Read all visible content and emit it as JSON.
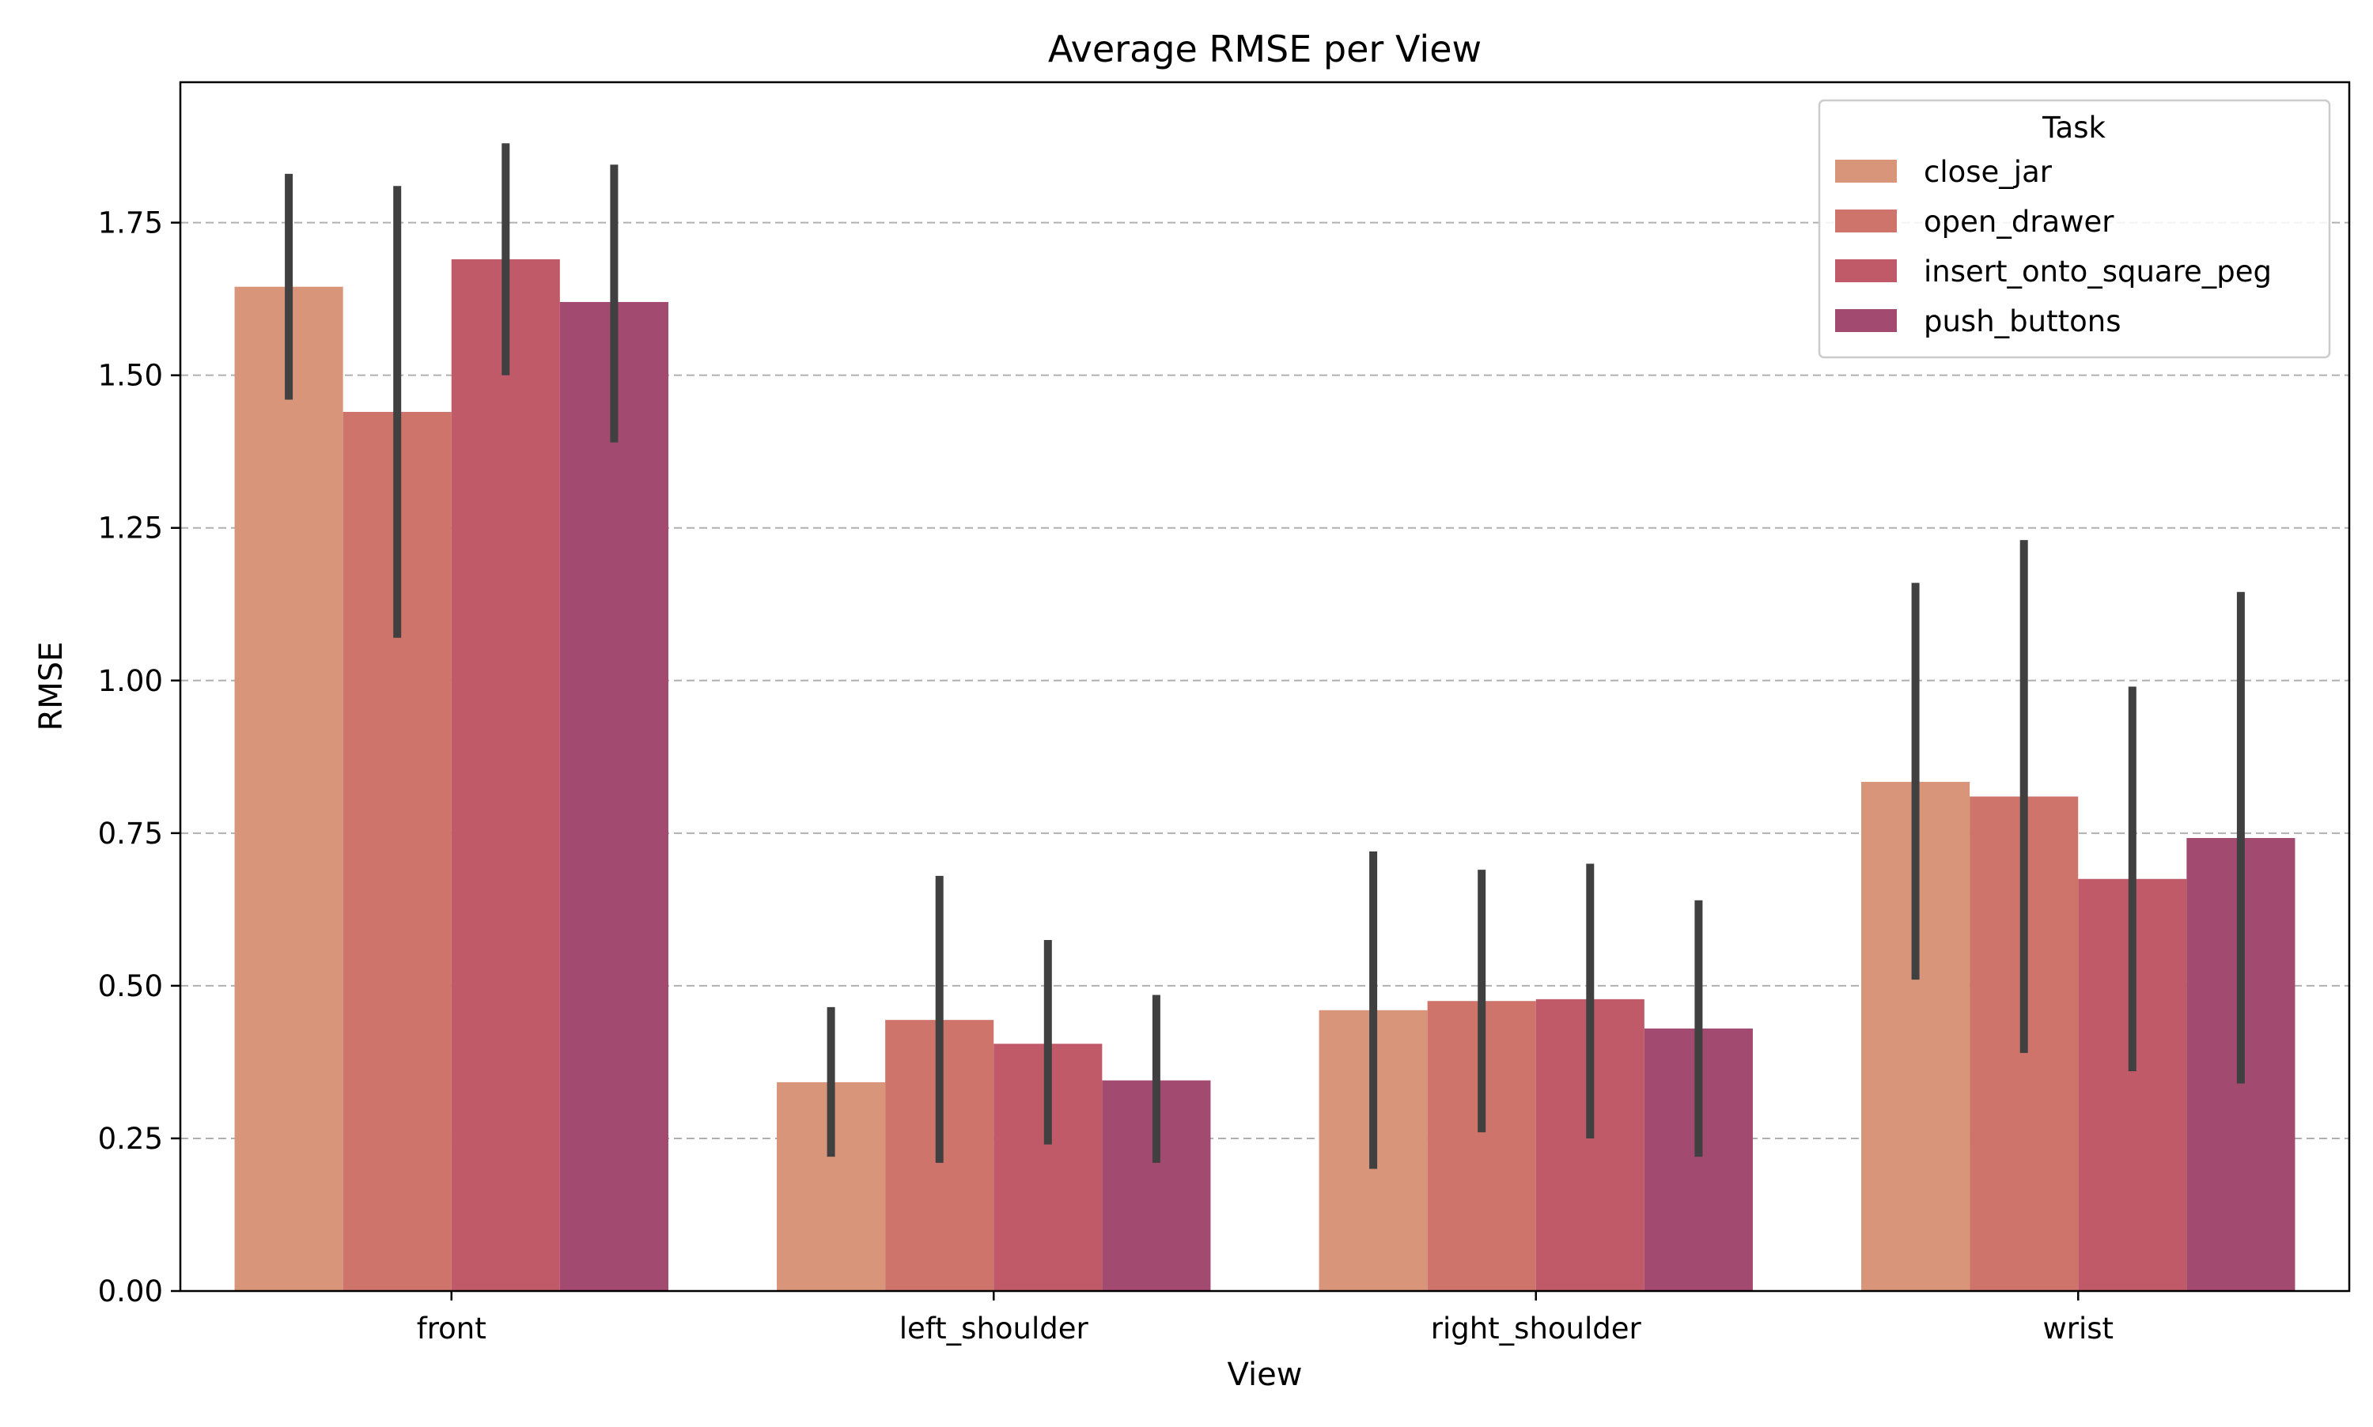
{
  "chart_data": {
    "type": "bar",
    "title": "Average RMSE per View",
    "xlabel": "View",
    "ylabel": "RMSE",
    "categories": [
      "front",
      "left_shoulder",
      "right_shoulder",
      "wrist"
    ],
    "ylim": [
      0,
      1.98
    ],
    "yticks": [
      "0.00",
      "0.25",
      "0.50",
      "0.75",
      "1.00",
      "1.25",
      "1.50",
      "1.75"
    ],
    "grid": "y-dashed",
    "legend": {
      "title": "Task",
      "placement": "top-right"
    },
    "series": [
      {
        "name": "close_jar",
        "color": "#d8957a",
        "values": [
          1.645,
          0.342,
          0.46,
          0.834
        ],
        "ci_low": [
          1.46,
          0.22,
          0.2,
          0.51
        ],
        "ci_high": [
          1.83,
          0.465,
          0.72,
          1.16
        ]
      },
      {
        "name": "open_drawer",
        "color": "#cf746b",
        "values": [
          1.44,
          0.444,
          0.475,
          0.81
        ],
        "ci_low": [
          1.07,
          0.21,
          0.26,
          0.39
        ],
        "ci_high": [
          1.81,
          0.68,
          0.69,
          1.23
        ]
      },
      {
        "name": "insert_onto_square_peg",
        "color": "#c05a68",
        "values": [
          1.69,
          0.405,
          0.478,
          0.675
        ],
        "ci_low": [
          1.5,
          0.24,
          0.25,
          0.36
        ],
        "ci_high": [
          1.88,
          0.575,
          0.7,
          0.99
        ]
      },
      {
        "name": "push_buttons",
        "color": "#a24a6f",
        "values": [
          1.62,
          0.345,
          0.43,
          0.742
        ],
        "ci_low": [
          1.39,
          0.21,
          0.22,
          0.34
        ],
        "ci_high": [
          1.845,
          0.485,
          0.64,
          1.145
        ]
      }
    ],
    "errorbar_color": "#404040"
  }
}
